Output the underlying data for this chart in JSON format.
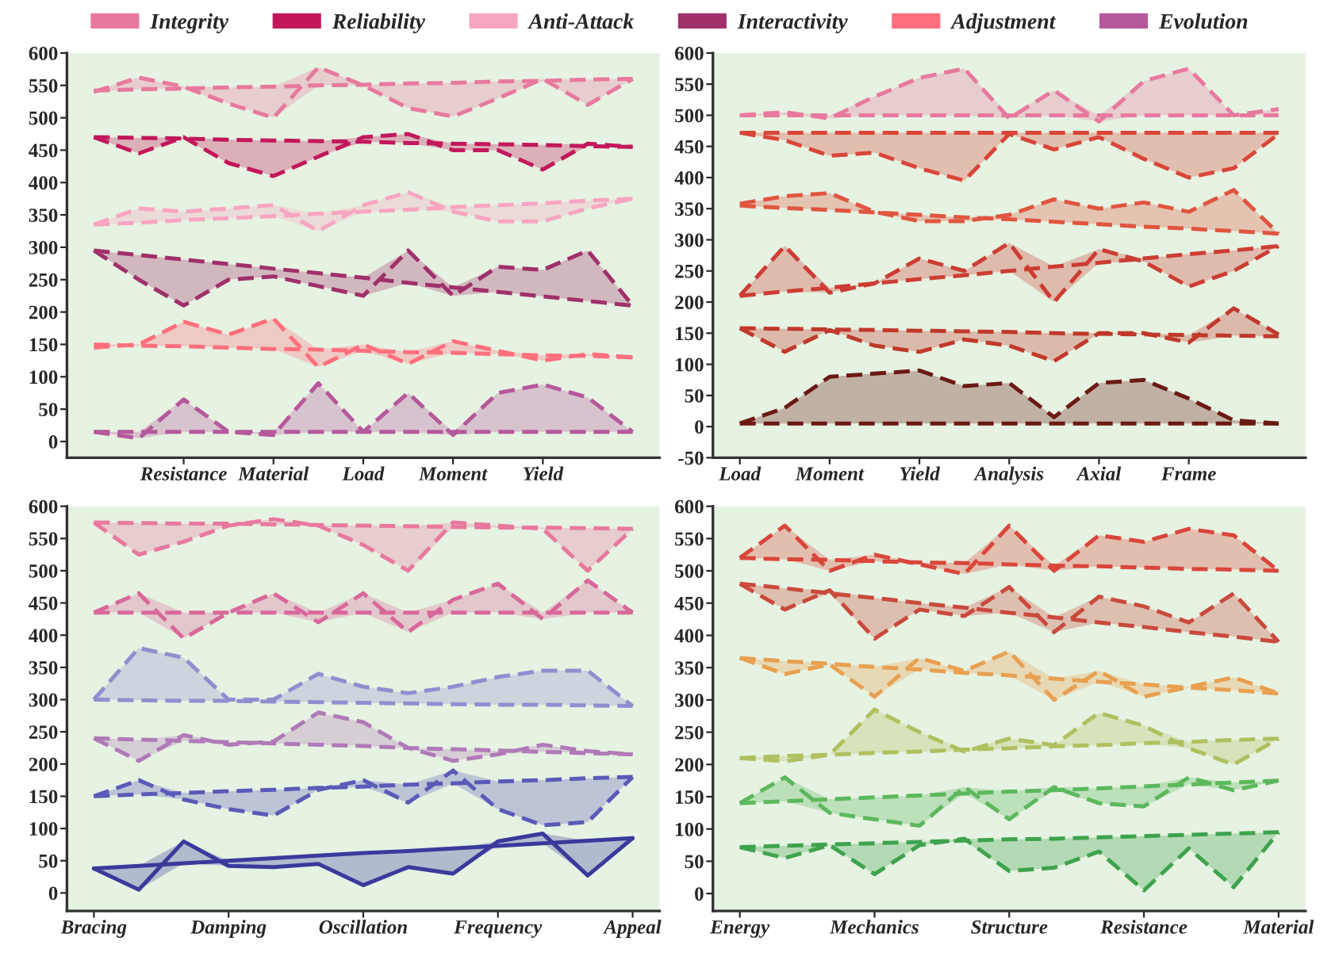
{
  "chart_data": [
    {
      "type": "line",
      "legend": "top",
      "line_style": "dashed",
      "categories": [
        null,
        null,
        "Resistance",
        null,
        "Material",
        null,
        "Load",
        null,
        "Moment",
        null,
        "Yield",
        null,
        null
      ],
      "ylim": [
        -25,
        600
      ],
      "yticks": [
        0,
        50,
        100,
        150,
        200,
        250,
        300,
        350,
        400,
        450,
        500,
        550,
        600
      ],
      "series": [
        {
          "name": "Integrity",
          "color": "#e8799e",
          "values": [
            540,
            562,
            548,
            522,
            500,
            578,
            550,
            515,
            502,
            530,
            560,
            520,
            560
          ],
          "lower": [
            540,
            544,
            545,
            522,
            500,
            550,
            550,
            515,
            502,
            530,
            557,
            520,
            560
          ],
          "upper": [
            542,
            562,
            548,
            547,
            548,
            578,
            551,
            553,
            554,
            556,
            560,
            559,
            560
          ]
        },
        {
          "color": "#e8799e",
          "values": [
            542,
            544,
            545,
            547,
            548,
            550,
            551,
            553,
            554,
            556,
            557,
            559,
            560
          ]
        },
        {
          "name": "Reliability",
          "color": "#c2185b",
          "values": [
            470,
            445,
            470,
            430,
            410,
            440,
            470,
            475,
            450,
            450,
            420,
            460,
            455
          ],
          "lower": [
            470,
            445,
            468,
            430,
            410,
            440,
            463,
            461,
            450,
            450,
            420,
            456,
            455
          ],
          "upper": [
            470,
            469,
            470,
            466,
            465,
            464,
            470,
            475,
            460,
            459,
            458,
            460,
            455
          ]
        },
        {
          "color": "#c2185b",
          "values": [
            470,
            469,
            468,
            466,
            465,
            464,
            463,
            461,
            460,
            459,
            458,
            456,
            455
          ]
        },
        {
          "name": "Anti-Attack",
          "color": "#f8a5c2",
          "values": [
            335,
            360,
            355,
            360,
            365,
            325,
            365,
            385,
            355,
            340,
            340,
            360,
            375
          ],
          "lower": [
            335,
            338,
            342,
            345,
            348,
            325,
            355,
            358,
            355,
            340,
            340,
            360,
            375
          ],
          "upper": [
            335,
            360,
            355,
            360,
            365,
            352,
            365,
            385,
            362,
            365,
            368,
            372,
            375
          ]
        },
        {
          "color": "#f8a5c2",
          "values": [
            335,
            338,
            342,
            345,
            348,
            352,
            355,
            358,
            362,
            365,
            368,
            372,
            375
          ]
        },
        {
          "name": "Interactivity",
          "color": "#a0306a",
          "values": [
            295,
            250,
            210,
            250,
            255,
            240,
            225,
            295,
            225,
            270,
            265,
            295,
            210
          ],
          "lower": [
            295,
            250,
            210,
            250,
            255,
            240,
            225,
            245,
            225,
            231,
            224,
            217,
            210
          ],
          "upper": [
            295,
            288,
            281,
            274,
            267,
            260,
            253,
            295,
            238,
            270,
            265,
            295,
            210
          ]
        },
        {
          "color": "#a0306a",
          "values": [
            295,
            288,
            281,
            274,
            267,
            260,
            253,
            245,
            238,
            231,
            224,
            217,
            210
          ]
        },
        {
          "name": "Adjustment",
          "color": "#ff6f7d",
          "values": [
            145,
            150,
            185,
            165,
            190,
            115,
            150,
            120,
            155,
            140,
            125,
            135,
            130
          ],
          "lower": [
            145,
            148,
            147,
            145,
            143,
            115,
            140,
            120,
            137,
            135,
            125,
            132,
            130
          ],
          "upper": [
            150,
            150,
            185,
            165,
            190,
            142,
            150,
            138,
            155,
            140,
            133,
            135,
            130
          ]
        },
        {
          "color": "#ff6f7d",
          "values": [
            150,
            148,
            147,
            145,
            143,
            142,
            140,
            138,
            137,
            135,
            133,
            132,
            130
          ]
        },
        {
          "name": "Evolution",
          "color": "#b5589c",
          "values": [
            15,
            5,
            65,
            15,
            10,
            90,
            15,
            75,
            10,
            75,
            88,
            68,
            15
          ],
          "lower": [
            15,
            5,
            15,
            15,
            10,
            15,
            15,
            15,
            10,
            15,
            15,
            15,
            15
          ],
          "upper": [
            15,
            15,
            65,
            15,
            15,
            90,
            15,
            75,
            15,
            75,
            88,
            68,
            15
          ]
        },
        {
          "color": "#b5589c",
          "values": [
            15,
            15,
            15,
            15,
            15,
            15,
            15,
            15,
            15,
            15,
            15,
            15,
            15
          ]
        }
      ]
    },
    {
      "type": "line",
      "line_style": "dashed",
      "categories": [
        "Load",
        null,
        "Moment",
        null,
        "Yield",
        null,
        "Analysis",
        null,
        "Axial",
        null,
        "Frame",
        null,
        null
      ],
      "ylim": [
        -50,
        600
      ],
      "yticks": [
        -50,
        0,
        50,
        100,
        150,
        200,
        250,
        300,
        350,
        400,
        450,
        500,
        550,
        600
      ],
      "series": [
        {
          "color": "#e8799e",
          "values": [
            500,
            505,
            495,
            530,
            560,
            575,
            495,
            540,
            490,
            555,
            575,
            500,
            510
          ],
          "lower": [
            500,
            500,
            495,
            500,
            500,
            500,
            495,
            500,
            490,
            500,
            500,
            500,
            500
          ],
          "upper": [
            500,
            505,
            500,
            530,
            560,
            575,
            500,
            540,
            500,
            555,
            575,
            500,
            510
          ]
        },
        {
          "color": "#e8799e",
          "values": [
            500,
            500,
            500,
            500,
            500,
            500,
            500,
            500,
            500,
            500,
            500,
            500,
            500
          ]
        },
        {
          "color": "#d9463a",
          "values": [
            472,
            460,
            435,
            440,
            415,
            395,
            470,
            445,
            465,
            430,
            400,
            415,
            470
          ],
          "lower": [
            472,
            460,
            435,
            440,
            415,
            395,
            470,
            445,
            465,
            430,
            400,
            415,
            470
          ],
          "upper": [
            472,
            472,
            472,
            472,
            472,
            472,
            472,
            472,
            472,
            472,
            472,
            472,
            472
          ]
        },
        {
          "color": "#d9463a",
          "values": [
            472,
            472,
            472,
            472,
            472,
            472,
            472,
            472,
            472,
            472,
            472,
            472,
            472
          ]
        },
        {
          "color": "#e0553f",
          "values": [
            358,
            370,
            375,
            345,
            330,
            330,
            340,
            365,
            350,
            360,
            345,
            380,
            310
          ],
          "lower": [
            355,
            351,
            348,
            344,
            330,
            330,
            333,
            329,
            325,
            321,
            318,
            314,
            310
          ],
          "upper": [
            358,
            370,
            375,
            345,
            340,
            336,
            340,
            365,
            350,
            360,
            345,
            380,
            310
          ]
        },
        {
          "color": "#e0553f",
          "values": [
            355,
            351,
            348,
            344,
            340,
            336,
            333,
            329,
            325,
            321,
            318,
            314,
            310
          ]
        },
        {
          "color": "#cc3d33",
          "values": [
            210,
            290,
            215,
            230,
            270,
            250,
            295,
            200,
            285,
            265,
            225,
            250,
            290
          ],
          "lower": [
            210,
            217,
            215,
            230,
            237,
            243,
            250,
            200,
            263,
            265,
            225,
            250,
            290
          ],
          "upper": [
            210,
            290,
            223,
            230,
            270,
            250,
            295,
            257,
            285,
            270,
            277,
            283,
            290
          ]
        },
        {
          "color": "#cc3d33",
          "values": [
            210,
            217,
            223,
            230,
            237,
            243,
            250,
            257,
            263,
            270,
            277,
            283,
            290
          ]
        },
        {
          "color": "#c0392b",
          "values": [
            158,
            120,
            155,
            130,
            120,
            140,
            130,
            105,
            150,
            150,
            135,
            190,
            148
          ],
          "lower": [
            158,
            120,
            155,
            130,
            120,
            140,
            130,
            105,
            149,
            148,
            135,
            146,
            145
          ],
          "upper": [
            158,
            157,
            156,
            155,
            154,
            153,
            152,
            150,
            150,
            150,
            147,
            190,
            148
          ]
        },
        {
          "color": "#c0392b",
          "values": [
            158,
            157,
            156,
            155,
            154,
            153,
            152,
            150,
            149,
            148,
            147,
            146,
            145
          ]
        },
        {
          "color": "#6b1a14",
          "values": [
            5,
            30,
            80,
            85,
            90,
            65,
            70,
            15,
            70,
            75,
            45,
            10,
            5
          ],
          "lower": [
            5,
            5,
            5,
            5,
            5,
            5,
            5,
            5,
            5,
            5,
            5,
            5,
            5
          ],
          "upper": [
            5,
            30,
            80,
            85,
            90,
            65,
            70,
            15,
            70,
            75,
            45,
            10,
            5
          ]
        },
        {
          "color": "#6b1a14",
          "values": [
            5,
            5,
            5,
            5,
            5,
            5,
            5,
            5,
            5,
            5,
            5,
            5,
            5
          ]
        }
      ]
    },
    {
      "type": "line",
      "line_style": "dashed",
      "categories": [
        "Bracing",
        null,
        null,
        "Damping",
        null,
        null,
        "Oscillation",
        null,
        null,
        "Frequency",
        null,
        null,
        "Appeal"
      ],
      "ylim": [
        -28,
        600
      ],
      "yticks": [
        0,
        50,
        100,
        150,
        200,
        250,
        300,
        350,
        400,
        450,
        500,
        550,
        600
      ],
      "series": [
        {
          "color": "#e8799e",
          "values": [
            575,
            525,
            545,
            570,
            580,
            570,
            540,
            500,
            575,
            570,
            565,
            500,
            565
          ],
          "lower": [
            575,
            525,
            545,
            570,
            572,
            570,
            540,
            500,
            568,
            567,
            565,
            500,
            565
          ],
          "upper": [
            575,
            574,
            573,
            573,
            580,
            571,
            570,
            569,
            575,
            570,
            567,
            566,
            565
          ]
        },
        {
          "color": "#e8799e",
          "values": [
            575,
            574,
            573,
            573,
            572,
            571,
            570,
            569,
            568,
            567,
            567,
            566,
            565
          ]
        },
        {
          "color": "#d9689a",
          "values": [
            435,
            465,
            395,
            435,
            465,
            420,
            465,
            405,
            455,
            480,
            425,
            485,
            435
          ],
          "lower": [
            435,
            435,
            395,
            435,
            435,
            420,
            435,
            405,
            435,
            435,
            425,
            435,
            435
          ],
          "upper": [
            435,
            465,
            435,
            435,
            465,
            435,
            465,
            435,
            455,
            480,
            435,
            485,
            435
          ]
        },
        {
          "color": "#d9689a",
          "values": [
            435,
            435,
            435,
            435,
            435,
            435,
            435,
            435,
            435,
            435,
            435,
            435,
            435
          ]
        },
        {
          "color": "#8f8fd0",
          "values": [
            300,
            380,
            365,
            300,
            300,
            340,
            320,
            310,
            320,
            335,
            345,
            345,
            290
          ],
          "lower": [
            300,
            299,
            298,
            298,
            297,
            296,
            295,
            294,
            293,
            292,
            292,
            291,
            290
          ],
          "upper": [
            300,
            380,
            365,
            300,
            300,
            340,
            320,
            310,
            320,
            335,
            345,
            345,
            290
          ]
        },
        {
          "color": "#8f8fd0",
          "values": [
            300,
            299,
            298,
            298,
            297,
            296,
            295,
            294,
            293,
            292,
            292,
            291,
            290
          ]
        },
        {
          "color": "#b07ab8",
          "values": [
            240,
            205,
            245,
            230,
            235,
            280,
            265,
            225,
            205,
            215,
            230,
            220,
            215
          ],
          "lower": [
            240,
            205,
            236,
            230,
            232,
            230,
            228,
            225,
            205,
            215,
            219,
            217,
            215
          ],
          "upper": [
            240,
            238,
            245,
            234,
            235,
            280,
            265,
            225,
            223,
            221,
            230,
            220,
            215
          ]
        },
        {
          "color": "#b07ab8",
          "values": [
            240,
            238,
            236,
            234,
            232,
            230,
            228,
            225,
            223,
            221,
            219,
            217,
            215
          ]
        },
        {
          "color": "#5a5ab8",
          "values": [
            150,
            175,
            145,
            130,
            120,
            160,
            175,
            140,
            190,
            130,
            105,
            110,
            180
          ],
          "lower": [
            150,
            153,
            145,
            130,
            120,
            160,
            165,
            140,
            170,
            130,
            105,
            110,
            180
          ],
          "upper": [
            150,
            175,
            155,
            158,
            160,
            163,
            175,
            168,
            190,
            173,
            175,
            178,
            180
          ]
        },
        {
          "color": "#5a5ab8",
          "values": [
            150,
            153,
            155,
            158,
            160,
            163,
            165,
            168,
            170,
            173,
            175,
            178,
            180
          ]
        },
        {
          "color": "#3a3a9c",
          "line_style": "solid",
          "values": [
            38,
            5,
            80,
            42,
            40,
            45,
            12,
            40,
            30,
            80,
            92,
            27,
            85
          ],
          "lower": [
            38,
            5,
            46,
            42,
            40,
            45,
            12,
            40,
            30,
            73,
            77,
            27,
            85
          ],
          "upper": [
            38,
            42,
            80,
            50,
            54,
            58,
            62,
            65,
            69,
            80,
            92,
            81,
            85
          ]
        },
        {
          "color": "#3a3a9c",
          "line_style": "solid",
          "values": [
            38,
            42,
            46,
            50,
            54,
            58,
            62,
            65,
            69,
            73,
            77,
            81,
            85
          ]
        }
      ]
    },
    {
      "type": "line",
      "line_style": "dashed",
      "categories": [
        "Energy",
        null,
        null,
        "Mechanics",
        null,
        null,
        "Structure",
        null,
        null,
        "Resistance",
        null,
        null,
        "Material"
      ],
      "ylim": [
        -27,
        600
      ],
      "yticks": [
        0,
        50,
        100,
        150,
        200,
        250,
        300,
        350,
        400,
        450,
        500,
        550,
        600
      ],
      "series": [
        {
          "color": "#d9463a",
          "values": [
            520,
            570,
            500,
            525,
            510,
            495,
            570,
            500,
            555,
            545,
            565,
            555,
            500
          ],
          "lower": [
            520,
            518,
            500,
            515,
            510,
            495,
            510,
            500,
            507,
            505,
            503,
            502,
            500
          ],
          "upper": [
            520,
            570,
            517,
            525,
            513,
            512,
            570,
            508,
            555,
            545,
            565,
            555,
            500
          ]
        },
        {
          "color": "#d9463a",
          "values": [
            520,
            518,
            517,
            515,
            513,
            512,
            510,
            508,
            507,
            505,
            503,
            502,
            500
          ]
        },
        {
          "color": "#c94a3c",
          "values": [
            480,
            440,
            470,
            395,
            440,
            430,
            475,
            405,
            460,
            445,
            420,
            465,
            390
          ],
          "lower": [
            480,
            440,
            465,
            395,
            440,
            430,
            435,
            405,
            420,
            413,
            405,
            398,
            390
          ],
          "upper": [
            480,
            473,
            470,
            458,
            450,
            443,
            475,
            428,
            460,
            445,
            420,
            465,
            390
          ]
        },
        {
          "color": "#c94a3c",
          "values": [
            480,
            473,
            465,
            458,
            450,
            443,
            435,
            428,
            420,
            413,
            405,
            398,
            390
          ]
        },
        {
          "color": "#e8a050",
          "values": [
            365,
            340,
            355,
            305,
            365,
            345,
            375,
            300,
            345,
            305,
            320,
            335,
            310
          ],
          "lower": [
            365,
            340,
            355,
            305,
            347,
            342,
            338,
            300,
            328,
            305,
            319,
            315,
            310
          ],
          "upper": [
            365,
            360,
            356,
            351,
            365,
            345,
            375,
            333,
            345,
            324,
            320,
            335,
            310
          ]
        },
        {
          "color": "#e8a050",
          "values": [
            365,
            360,
            356,
            351,
            347,
            342,
            338,
            333,
            328,
            324,
            319,
            315,
            310
          ]
        },
        {
          "color": "#b0c060",
          "values": [
            210,
            205,
            215,
            285,
            250,
            220,
            240,
            230,
            280,
            260,
            225,
            200,
            240
          ],
          "lower": [
            210,
            205,
            215,
            218,
            220,
            220,
            225,
            228,
            230,
            233,
            225,
            200,
            240
          ],
          "upper": [
            210,
            213,
            215,
            285,
            250,
            223,
            240,
            230,
            280,
            260,
            235,
            238,
            240
          ]
        },
        {
          "color": "#b0c060",
          "values": [
            210,
            213,
            215,
            218,
            220,
            223,
            225,
            228,
            230,
            233,
            235,
            238,
            240
          ]
        },
        {
          "color": "#5cb85c",
          "values": [
            140,
            180,
            125,
            115,
            105,
            165,
            115,
            165,
            140,
            135,
            180,
            160,
            175
          ],
          "lower": [
            140,
            143,
            125,
            115,
            105,
            155,
            115,
            160,
            140,
            135,
            169,
            160,
            175
          ],
          "upper": [
            140,
            180,
            146,
            149,
            152,
            165,
            158,
            165,
            163,
            166,
            180,
            172,
            175
          ]
        },
        {
          "color": "#5cb85c",
          "values": [
            140,
            143,
            146,
            149,
            152,
            155,
            158,
            160,
            163,
            166,
            169,
            172,
            175
          ]
        },
        {
          "color": "#3fa34d",
          "values": [
            72,
            55,
            75,
            30,
            75,
            85,
            35,
            40,
            65,
            5,
            70,
            10,
            95
          ],
          "lower": [
            72,
            55,
            75,
            30,
            75,
            82,
            35,
            40,
            65,
            5,
            70,
            10,
            95
          ],
          "upper": [
            72,
            74,
            76,
            78,
            80,
            85,
            84,
            85,
            87,
            89,
            91,
            93,
            95
          ]
        },
        {
          "color": "#3fa34d",
          "values": [
            72,
            74,
            76,
            78,
            80,
            82,
            84,
            85,
            87,
            89,
            91,
            93,
            95
          ]
        }
      ]
    }
  ]
}
